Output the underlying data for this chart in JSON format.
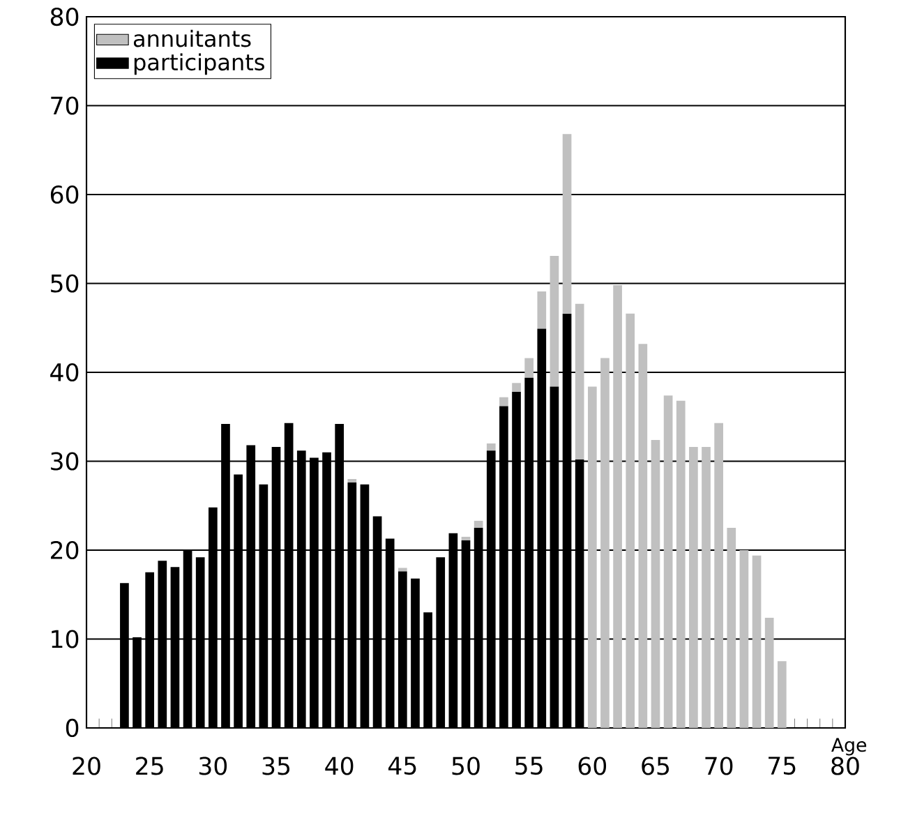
{
  "chart_data": {
    "type": "bar",
    "stacked": true,
    "xlabel": "Age",
    "x": [
      23,
      24,
      25,
      26,
      27,
      28,
      29,
      30,
      31,
      32,
      33,
      34,
      35,
      36,
      37,
      38,
      39,
      40,
      41,
      42,
      43,
      44,
      45,
      46,
      47,
      48,
      49,
      50,
      51,
      52,
      53,
      54,
      55,
      56,
      57,
      58,
      59,
      60,
      61,
      62,
      63,
      64,
      65,
      66,
      67,
      68,
      69,
      70,
      71,
      72,
      73,
      74,
      75
    ],
    "series": [
      {
        "name": "participants",
        "color": "#000000",
        "values": [
          16.3,
          10.2,
          17.5,
          18.8,
          18.1,
          20.0,
          19.2,
          24.8,
          34.2,
          28.5,
          31.8,
          27.4,
          31.6,
          34.3,
          31.2,
          30.4,
          31.0,
          34.2,
          27.6,
          27.4,
          23.8,
          21.3,
          17.6,
          16.8,
          13.0,
          19.2,
          21.9,
          21.1,
          22.5,
          31.2,
          36.2,
          37.8,
          39.4,
          44.9,
          38.4,
          46.6,
          30.2,
          0,
          0,
          0,
          0,
          0,
          0,
          0,
          0,
          0,
          0,
          0,
          0,
          0,
          0,
          0,
          0
        ]
      },
      {
        "name": "annuitants",
        "color": "#c0c0c0",
        "values": [
          0,
          0,
          0,
          0,
          0,
          0,
          0,
          0,
          0,
          0,
          0,
          0,
          0,
          0,
          0,
          0,
          0,
          0,
          0.4,
          0,
          0,
          0,
          0.4,
          0,
          0,
          0,
          0,
          0.4,
          0.8,
          0.8,
          1.0,
          1.0,
          2.2,
          4.2,
          14.7,
          20.2,
          17.5,
          38.4,
          41.6,
          49.8,
          46.6,
          43.2,
          32.4,
          37.4,
          36.8,
          31.6,
          31.6,
          34.3,
          22.5,
          20.0,
          19.4,
          12.4,
          7.5
        ]
      }
    ],
    "xlim": [
      20,
      80
    ],
    "xticks": [
      20,
      25,
      30,
      35,
      40,
      45,
      50,
      55,
      60,
      65,
      70,
      75,
      80
    ],
    "ylim": [
      0,
      80
    ],
    "yticks": [
      0,
      10,
      20,
      30,
      40,
      50,
      60,
      70,
      80
    ],
    "grid": "y",
    "legend": "top left"
  }
}
